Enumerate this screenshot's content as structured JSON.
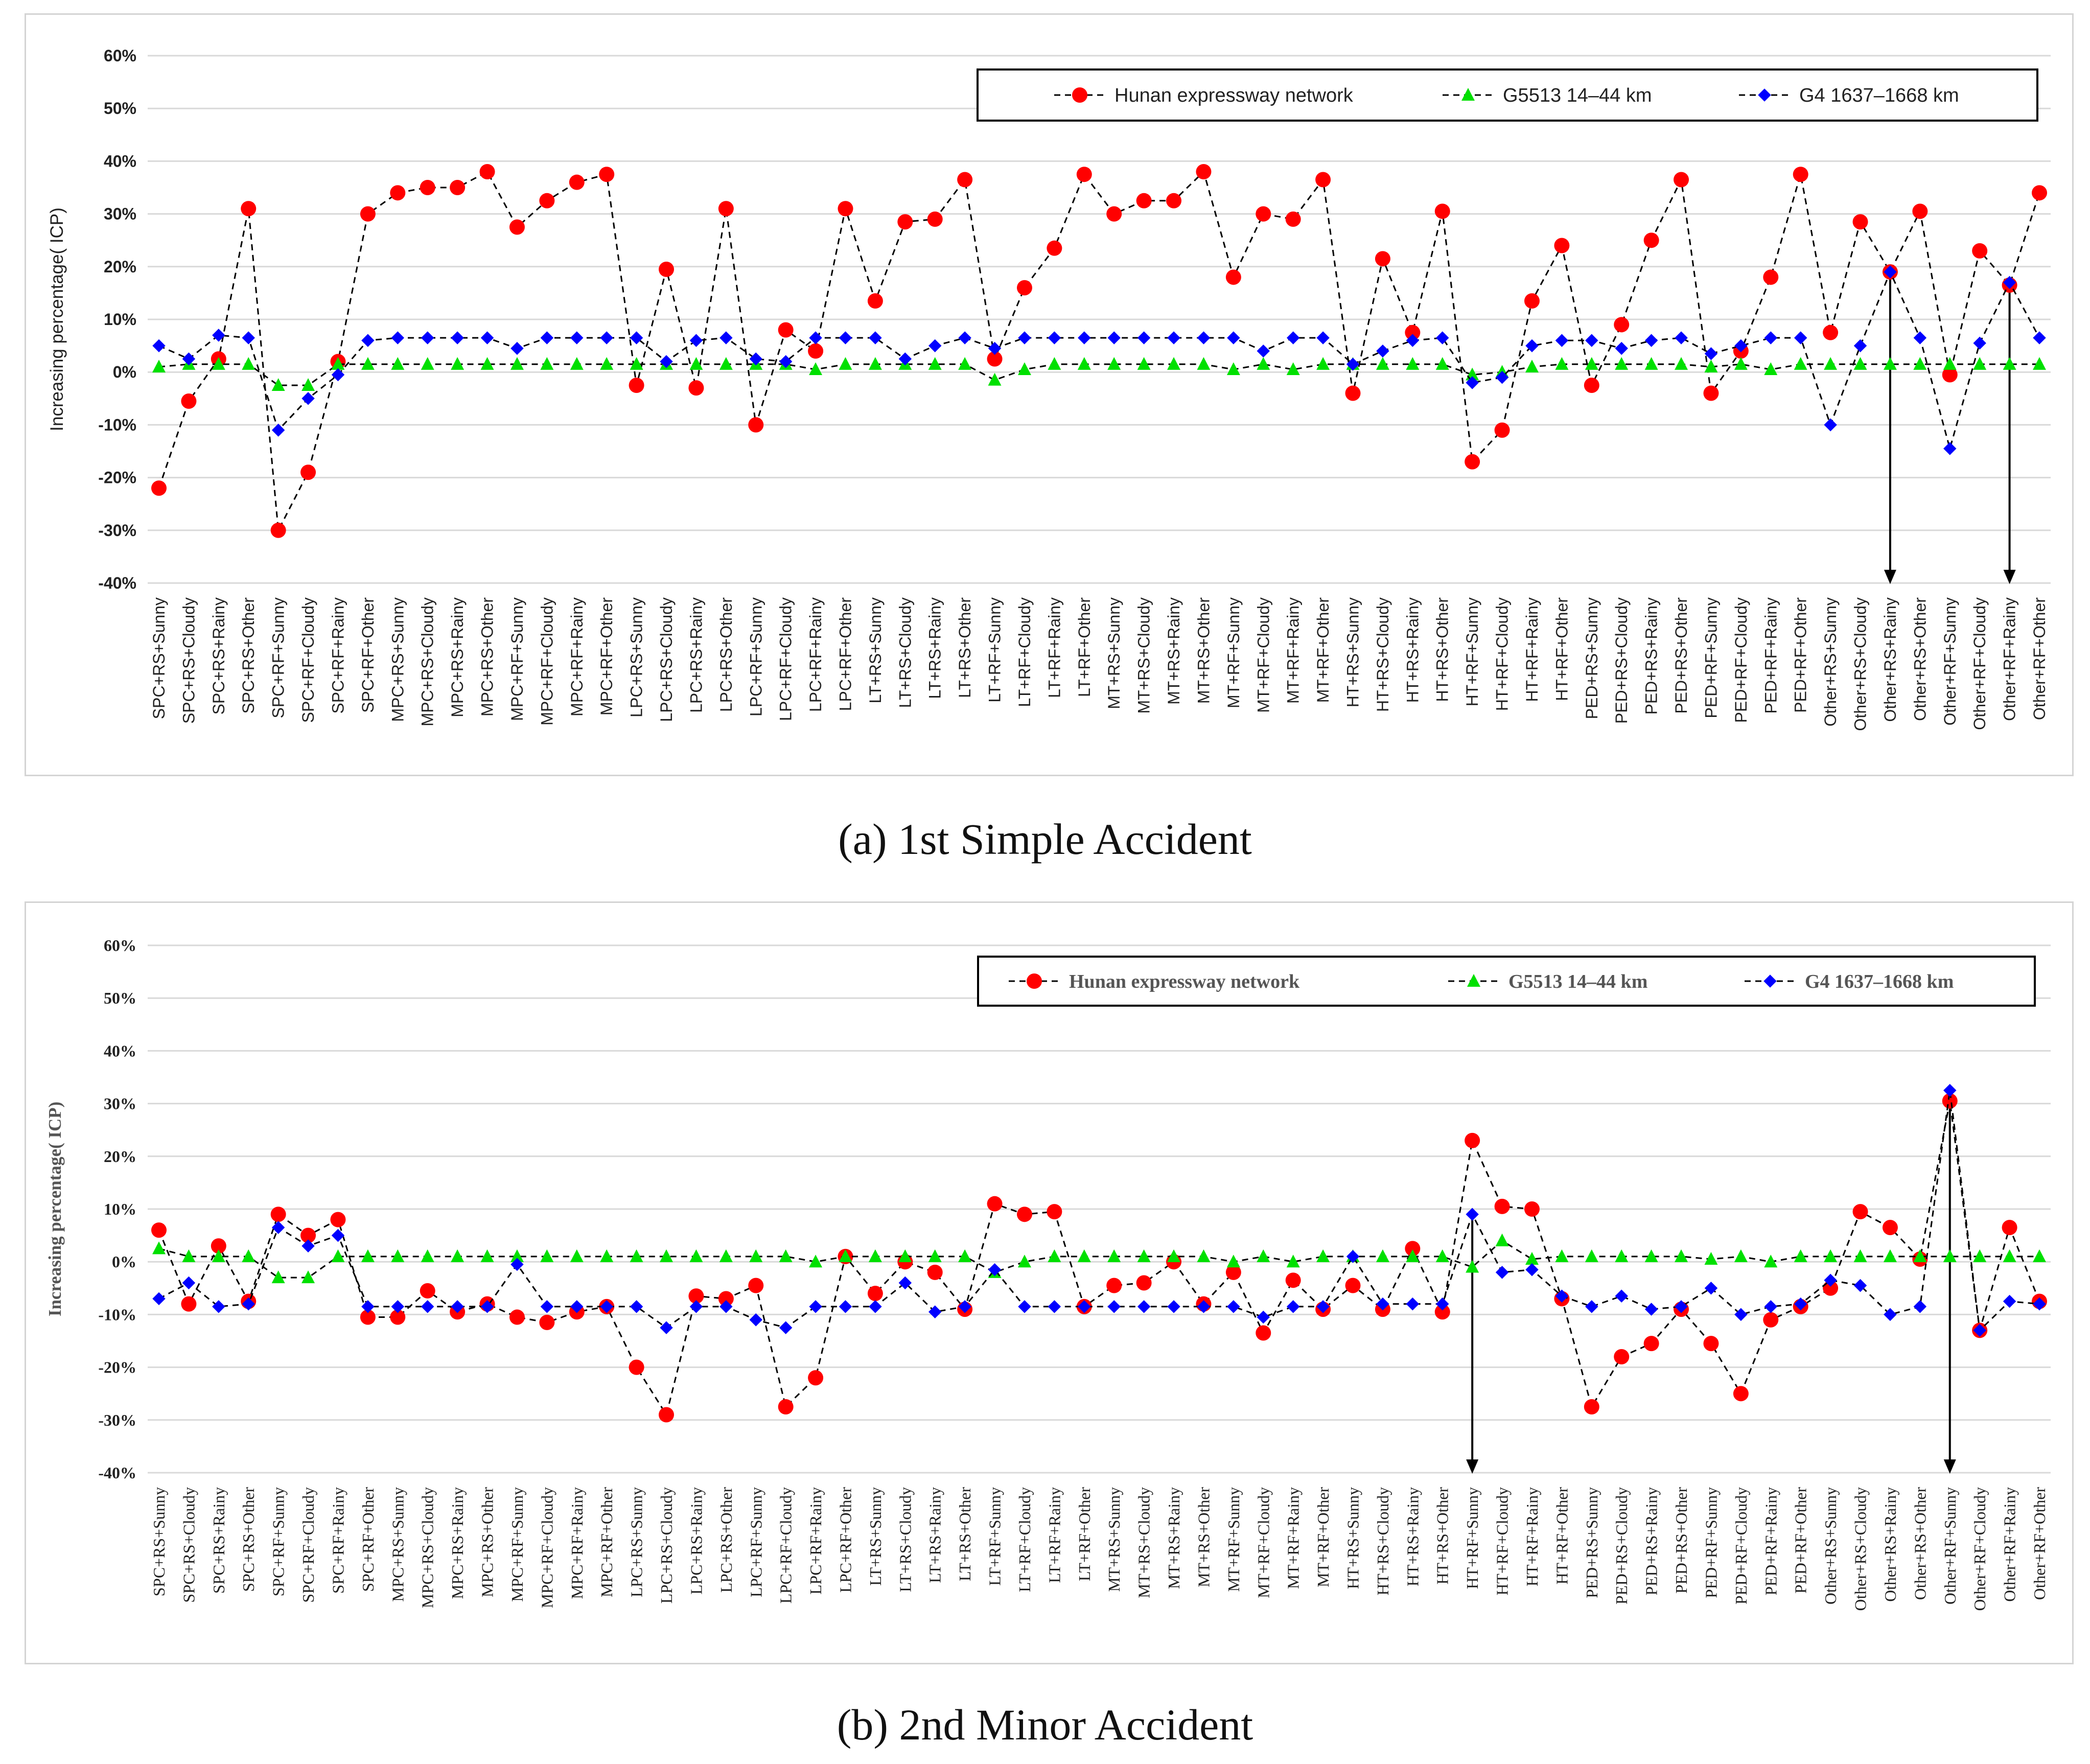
{
  "captions": [
    "(a) 1st Simple Accident",
    "(b) 2nd Minor Accident"
  ],
  "colors": {
    "hunan": "#ff0000",
    "g5513": "#00e000",
    "g4": "#0000ff",
    "grid": "#d9d9d9",
    "line": "#000000"
  },
  "chart_data": [
    {
      "type": "line",
      "title": "(a) 1st Simple Accident",
      "xlabel": "",
      "ylabel": "Increasing percentage( ICP)",
      "ylim": [
        -40,
        60
      ],
      "yticks": [
        60,
        50,
        40,
        30,
        20,
        10,
        0,
        -10,
        -20,
        -30,
        -40
      ],
      "ytick_labels": [
        "60%",
        "50%",
        "40%",
        "30%",
        "20%",
        "10%",
        "0%",
        "-10%",
        "-20%",
        "-30%",
        "-40%"
      ],
      "grid": true,
      "legend_position": "top-right",
      "categories": [
        "SPC+RS+Sunny",
        "SPC+RS+Cloudy",
        "SPC+RS+Rainy",
        "SPC+RS+Other",
        "SPC+RF+Sunny",
        "SPC+RF+Cloudy",
        "SPC+RF+Rainy",
        "SPC+RF+Other",
        "MPC+RS+Sunny",
        "MPC+RS+Cloudy",
        "MPC+RS+Rainy",
        "MPC+RS+Other",
        "MPC+RF+Sunny",
        "MPC+RF+Cloudy",
        "MPC+RF+Rainy",
        "MPC+RF+Other",
        "LPC+RS+Sunny",
        "LPC+RS+Cloudy",
        "LPC+RS+Rainy",
        "LPC+RS+Other",
        "LPC+RF+Sunny",
        "LPC+RF+Cloudy",
        "LPC+RF+Rainy",
        "LPC+RF+Other",
        "LT+RS+Sunny",
        "LT+RS+Cloudy",
        "LT+RS+Rainy",
        "LT+RS+Other",
        "LT+RF+Sunny",
        "LT+RF+Cloudy",
        "LT+RF+Rainy",
        "LT+RF+Other",
        "MT+RS+Sunny",
        "MT+RS+Cloudy",
        "MT+RS+Rainy",
        "MT+RS+Other",
        "MT+RF+Sunny",
        "MT+RF+Cloudy",
        "MT+RF+Rainy",
        "MT+RF+Other",
        "HT+RS+Sunny",
        "HT+RS+Cloudy",
        "HT+RS+Rainy",
        "HT+RS+Other",
        "HT+RF+Sunny",
        "HT+RF+Cloudy",
        "HT+RF+Rainy",
        "HT+RF+Other",
        "PED+RS+Sunny",
        "PED+RS+Cloudy",
        "PED+RS+Rainy",
        "PED+RS+Other",
        "PED+RF+Sunny",
        "PED+RF+Cloudy",
        "PED+RF+Rainy",
        "PED+RF+Other",
        "Other+RS+Sunny",
        "Other+RS+Cloudy",
        "Other+RS+Rainy",
        "Other+RS+Other",
        "Other+RF+Sunny",
        "Other+RF+Cloudy",
        "Other+RF+Rainy",
        "Other+RF+Other"
      ],
      "series": [
        {
          "name": "Hunan expressway network",
          "key": "hunan",
          "marker": "circle",
          "values": [
            -22,
            -5.5,
            2.5,
            31,
            -30,
            -19,
            2,
            30,
            34,
            35,
            35,
            38,
            27.5,
            32.5,
            36,
            37.5,
            -2.5,
            19.5,
            -3,
            31,
            -10,
            8,
            4,
            31,
            13.5,
            28.5,
            29,
            36.5,
            2.5,
            16,
            23.5,
            37.5,
            30,
            32.5,
            32.5,
            38,
            18,
            30,
            29,
            36.5,
            -4,
            21.5,
            7.5,
            30.5,
            -17,
            -11,
            13.5,
            24,
            -2.5,
            9,
            25,
            36.5,
            -4,
            4,
            18,
            37.5,
            7.5,
            28.5,
            19,
            30.5,
            -0.5,
            23,
            16.5,
            34
          ]
        },
        {
          "name": "G5513 14–44 km",
          "key": "g5513",
          "marker": "triangle",
          "values": [
            1,
            1.5,
            1.5,
            1.5,
            -2.5,
            -2.5,
            1.5,
            1.5,
            1.5,
            1.5,
            1.5,
            1.5,
            1.5,
            1.5,
            1.5,
            1.5,
            1.5,
            1.5,
            1.5,
            1.5,
            1.5,
            1.5,
            0.5,
            1.5,
            1.5,
            1.5,
            1.5,
            1.5,
            -1.5,
            0.5,
            1.5,
            1.5,
            1.5,
            1.5,
            1.5,
            1.5,
            0.5,
            1.5,
            0.5,
            1.5,
            1.5,
            1.5,
            1.5,
            1.5,
            -0.5,
            0,
            1,
            1.5,
            1.5,
            1.5,
            1.5,
            1.5,
            1,
            1.5,
            0.5,
            1.5,
            1.5,
            1.5,
            1.5,
            1.5,
            1.5,
            1.5,
            1.5,
            1.5
          ]
        },
        {
          "name": "G4 1637–1668 km",
          "key": "g4",
          "marker": "square",
          "values": [
            5,
            2.5,
            7,
            6.5,
            -11,
            -5,
            -0.5,
            6,
            6.5,
            6.5,
            6.5,
            6.5,
            4.5,
            6.5,
            6.5,
            6.5,
            6.5,
            2,
            6,
            6.5,
            2.5,
            2,
            6.5,
            6.5,
            6.5,
            2.5,
            5,
            6.5,
            4.5,
            6.5,
            6.5,
            6.5,
            6.5,
            6.5,
            6.5,
            6.5,
            6.5,
            4,
            6.5,
            6.5,
            1.5,
            4,
            6,
            6.5,
            -2,
            -1,
            5,
            6,
            6,
            4.5,
            6,
            6.5,
            3.5,
            5,
            6.5,
            6.5,
            -10,
            5,
            19,
            6.5,
            -14.5,
            5.5,
            17,
            6.5
          ]
        }
      ],
      "arrows": [
        {
          "category": "Other+RS+Rainy",
          "from": 19,
          "to": -40
        },
        {
          "category": "Other+RF+Rainy",
          "from": 17,
          "to": -40
        }
      ]
    },
    {
      "type": "line",
      "title": "(b) 2nd Minor Accident",
      "xlabel": "",
      "ylabel": "Increasing percentage( ICP)",
      "ylim": [
        -40,
        60
      ],
      "yticks": [
        60,
        50,
        40,
        30,
        20,
        10,
        0,
        -10,
        -20,
        -30,
        -40
      ],
      "ytick_labels": [
        "60%",
        "50%",
        "40%",
        "30%",
        "20%",
        "10%",
        "0%",
        "-10%",
        "-20%",
        "-30%",
        "-40%"
      ],
      "grid": true,
      "legend_position": "top-right",
      "categories": [
        "SPC+RS+Sunny",
        "SPC+RS+Cloudy",
        "SPC+RS+Rainy",
        "SPC+RS+Other",
        "SPC+RF+Sunny",
        "SPC+RF+Cloudy",
        "SPC+RF+Rainy",
        "SPC+RF+Other",
        "MPC+RS+Sunny",
        "MPC+RS+Cloudy",
        "MPC+RS+Rainy",
        "MPC+RS+Other",
        "MPC+RF+Sunny",
        "MPC+RF+Cloudy",
        "MPC+RF+Rainy",
        "MPC+RF+Other",
        "LPC+RS+Sunny",
        "LPC+RS+Cloudy",
        "LPC+RS+Rainy",
        "LPC+RS+Other",
        "LPC+RF+Sunny",
        "LPC+RF+Cloudy",
        "LPC+RF+Rainy",
        "LPC+RF+Other",
        "LT+RS+Sunny",
        "LT+RS+Cloudy",
        "LT+RS+Rainy",
        "LT+RS+Other",
        "LT+RF+Sunny",
        "LT+RF+Cloudy",
        "LT+RF+Rainy",
        "LT+RF+Other",
        "MT+RS+Sunny",
        "MT+RS+Cloudy",
        "MT+RS+Rainy",
        "MT+RS+Other",
        "MT+RF+Sunny",
        "MT+RF+Cloudy",
        "MT+RF+Rainy",
        "MT+RF+Other",
        "HT+RS+Sunny",
        "HT+RS+Cloudy",
        "HT+RS+Rainy",
        "HT+RS+Other",
        "HT+RF+Sunny",
        "HT+RF+Cloudy",
        "HT+RF+Rainy",
        "HT+RF+Other",
        "PED+RS+Sunny",
        "PED+RS+Cloudy",
        "PED+RS+Rainy",
        "PED+RS+Other",
        "PED+RF+Sunny",
        "PED+RF+Cloudy",
        "PED+RF+Rainy",
        "PED+RF+Other",
        "Other+RS+Sunny",
        "Other+RS+Cloudy",
        "Other+RS+Rainy",
        "Other+RS+Other",
        "Other+RF+Sunny",
        "Other+RF+Cloudy",
        "Other+RF+Rainy",
        "Other+RF+Other"
      ],
      "series": [
        {
          "name": "Hunan expressway network",
          "key": "hunan",
          "marker": "circle",
          "values": [
            6,
            -8,
            3,
            -7.5,
            9,
            5,
            8,
            -10.5,
            -10.5,
            -5.5,
            -9.5,
            -8,
            -10.5,
            -11.5,
            -9.5,
            -8.5,
            -20,
            -29,
            -6.5,
            -7,
            -4.5,
            -27.5,
            -22,
            1,
            -6,
            0,
            -2,
            -9,
            11,
            9,
            9.5,
            -8.5,
            -4.5,
            -4,
            0,
            -8,
            -2,
            -13.5,
            -3.5,
            -9,
            -4.5,
            -9,
            2.5,
            -9.5,
            23,
            10.5,
            10,
            -7,
            -27.5,
            -18,
            -15.5,
            -9,
            -15.5,
            -25,
            -11,
            -8.5,
            -5,
            9.5,
            6.5,
            0.5,
            30.5,
            -13,
            6.5,
            -7.5
          ]
        },
        {
          "name": "G5513 14–44 km",
          "key": "g5513",
          "marker": "triangle",
          "values": [
            2.5,
            1,
            1,
            1,
            -3,
            -3,
            1,
            1,
            1,
            1,
            1,
            1,
            1,
            1,
            1,
            1,
            1,
            1,
            1,
            1,
            1,
            1,
            0,
            1,
            1,
            1,
            1,
            1,
            -2,
            0,
            1,
            1,
            1,
            1,
            1,
            1,
            0,
            1,
            0,
            1,
            1,
            1,
            1,
            1,
            -1,
            4,
            0.5,
            1,
            1,
            1,
            1,
            1,
            0.5,
            1,
            0,
            1,
            1,
            1,
            1,
            1,
            1,
            1,
            1,
            1
          ]
        },
        {
          "name": "G4 1637–1668 km",
          "key": "g4",
          "marker": "square",
          "values": [
            -7,
            -4,
            -8.5,
            -8,
            6.5,
            3,
            5,
            -8.5,
            -8.5,
            -8.5,
            -8.5,
            -8.5,
            -0.5,
            -8.5,
            -8.5,
            -8.5,
            -8.5,
            -12.5,
            -8.5,
            -8.5,
            -11,
            -12.5,
            -8.5,
            -8.5,
            -8.5,
            -4,
            -9.5,
            -8.5,
            -1.5,
            -8.5,
            -8.5,
            -8.5,
            -8.5,
            -8.5,
            -8.5,
            -8.5,
            -8.5,
            -10.5,
            -8.5,
            -8.5,
            1,
            -8,
            -8,
            -8,
            9,
            -2,
            -1.5,
            -6.5,
            -8.5,
            -6.5,
            -9,
            -8.5,
            -5,
            -10,
            -8.5,
            -8,
            -3.5,
            -4.5,
            -10,
            -8.5,
            32.5,
            -13,
            -7.5,
            -8
          ]
        }
      ],
      "arrows": [
        {
          "category": "HT+RF+Sunny",
          "from": 9,
          "to": -40
        },
        {
          "category": "Other+RF+Sunny",
          "from": 30,
          "to": -40
        }
      ]
    }
  ]
}
